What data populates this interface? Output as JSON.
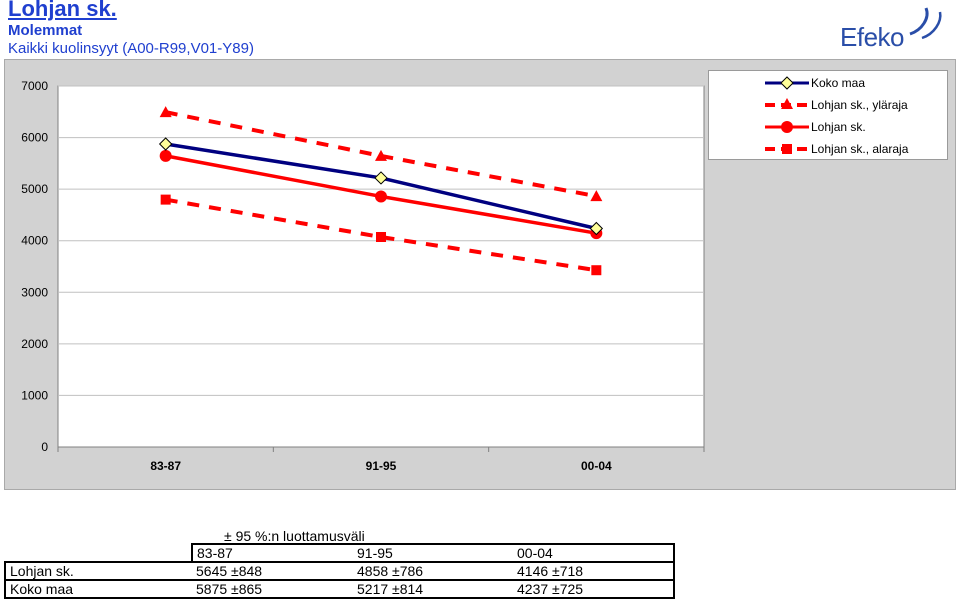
{
  "header": {
    "title": "Lohjan sk.",
    "subtitle1": "Molemmat",
    "subtitle2": "Kaikki kuolinsyyt (A00-R99,V01-Y89)",
    "logo_text": "Efeko"
  },
  "colors": {
    "panel": "#d2d2d2",
    "plot_bg": "#ffffff",
    "koko_maa": "#000080",
    "lohja": "#ff0000",
    "marker_fill_diamond": "#ffff99"
  },
  "chart_data": {
    "type": "line",
    "categories": [
      "83-87",
      "91-95",
      "00-04"
    ],
    "ylim": [
      0,
      7000
    ],
    "yticks": [
      0,
      1000,
      2000,
      3000,
      4000,
      5000,
      6000,
      7000
    ],
    "grid": true,
    "legend_position": "top-right",
    "series": [
      {
        "name": "Koko maa",
        "values": [
          5875,
          5217,
          4237
        ],
        "color": "#000080",
        "style": "solid",
        "marker": "diamond"
      },
      {
        "name": "Lohjan sk., yläraja",
        "values": [
          6493,
          5644,
          4864
        ],
        "color": "#ff0000",
        "style": "dashed",
        "marker": "triangle"
      },
      {
        "name": "Lohjan sk.",
        "values": [
          5645,
          4858,
          4146
        ],
        "color": "#ff0000",
        "style": "solid",
        "marker": "circle"
      },
      {
        "name": "Lohjan sk., alaraja",
        "values": [
          4797,
          4072,
          3428
        ],
        "color": "#ff0000",
        "style": "dashed",
        "marker": "square"
      }
    ]
  },
  "table": {
    "caption": "± 95 %:n luottamusväli",
    "headers": [
      "",
      "83-87",
      "91-95",
      "00-04"
    ],
    "rows": [
      [
        "Lohjan sk.",
        "5645 ±848",
        "4858 ±786",
        "4146 ±718"
      ],
      [
        "Koko maa",
        "5875 ±865",
        "5217 ±814",
        "4237 ±725"
      ]
    ]
  }
}
